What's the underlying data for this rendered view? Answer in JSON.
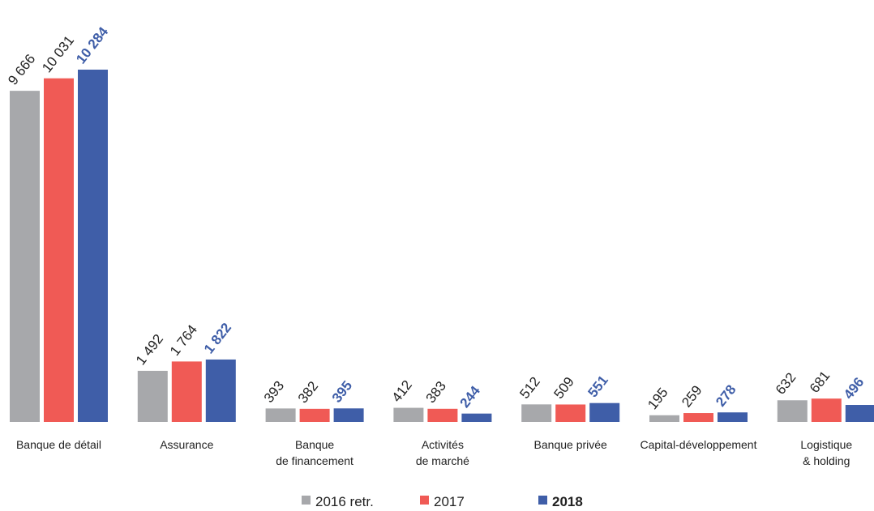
{
  "chart_data": {
    "type": "bar",
    "categories": [
      [
        "Banque de détail"
      ],
      [
        "Assurance"
      ],
      [
        "Banque",
        "de financement"
      ],
      [
        "Activités",
        "de marché"
      ],
      [
        "Banque privée"
      ],
      [
        "Capital-développement"
      ],
      [
        "Logistique",
        "& holding"
      ]
    ],
    "series": [
      {
        "name": "2016 retr.",
        "color": "#a7a8ab",
        "values": [
          9666,
          1492,
          393,
          412,
          512,
          195,
          632
        ],
        "value_labels": [
          "9 666",
          "1 492",
          "393",
          "412",
          "512",
          "195",
          "632"
        ]
      },
      {
        "name": "2017",
        "color": "#f05a55",
        "values": [
          10031,
          1764,
          382,
          383,
          509,
          259,
          681
        ],
        "value_labels": [
          "10 031",
          "1 764",
          "382",
          "383",
          "509",
          "259",
          "681"
        ]
      },
      {
        "name": "2018",
        "color": "#3f5ea8",
        "values": [
          10284,
          1822,
          395,
          244,
          551,
          278,
          496
        ],
        "value_labels": [
          "10 284",
          "1 822",
          "395",
          "244",
          "551",
          "278",
          "496"
        ]
      }
    ]
  }
}
